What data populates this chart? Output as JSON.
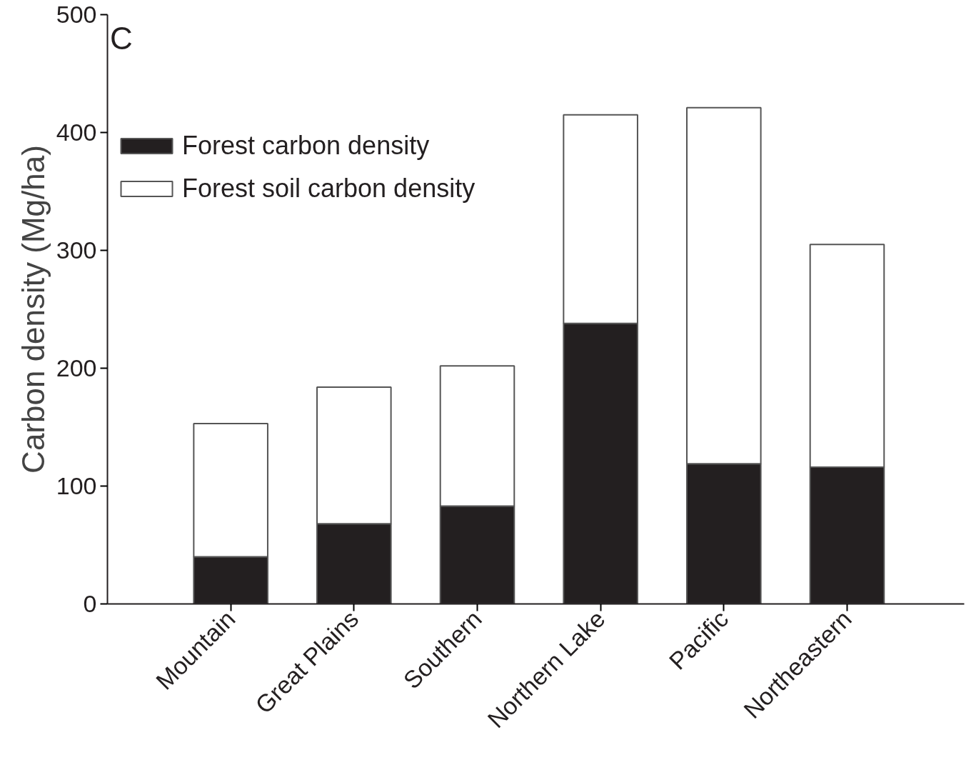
{
  "chart_data": {
    "type": "bar",
    "stacked": true,
    "ylabel": "Carbon density (Mg/ha)",
    "categories": [
      "Mountain",
      "Great Plains",
      "Southern",
      "Northern Lake",
      "Pacific",
      "Northeastern"
    ],
    "series": [
      {
        "name": "Forest carbon density",
        "color": "#231f20",
        "values": [
          40,
          68,
          83,
          238,
          119,
          116
        ]
      },
      {
        "name": "Forest soil carbon density",
        "color": "#ffffff",
        "values": [
          113,
          116,
          119,
          177,
          302,
          189
        ]
      }
    ],
    "ylim": [
      0,
      500
    ],
    "yticks": [
      0,
      100,
      200,
      300,
      400,
      500
    ],
    "grid": false,
    "legend": "top left",
    "annotations": [
      "C"
    ]
  }
}
